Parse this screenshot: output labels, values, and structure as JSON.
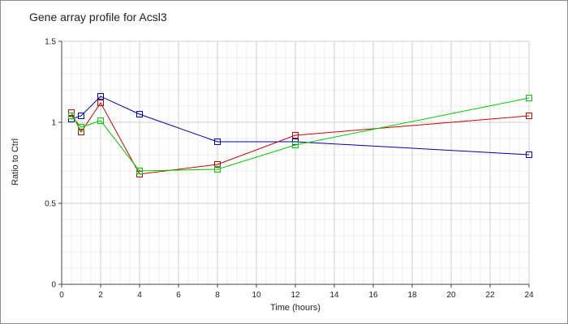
{
  "chart_data": {
    "type": "line",
    "title": "Gene array profile for Acsl3",
    "xlabel": "Time (hours)",
    "ylabel": "Ratio to Ctrl",
    "xlim": [
      0,
      24
    ],
    "ylim": [
      0,
      1.5
    ],
    "xticks": [
      0,
      2,
      4,
      6,
      8,
      10,
      12,
      14,
      16,
      18,
      20,
      22,
      24
    ],
    "yticks": [
      0,
      0.5,
      1,
      1.5
    ],
    "ytick_labels": [
      "0",
      "0.5",
      "1",
      "1.5"
    ],
    "grid": true,
    "marker": "square",
    "series": [
      {
        "color": "#0000b0",
        "x": [
          0.5,
          1,
          2,
          4,
          8,
          12,
          24
        ],
        "y": [
          1.02,
          1.04,
          1.16,
          1.05,
          0.88,
          0.88,
          0.8
        ]
      },
      {
        "color": "#d00000",
        "x": [
          0.5,
          1,
          2,
          4,
          8,
          12,
          24
        ],
        "y": [
          1.06,
          0.94,
          1.12,
          0.68,
          0.74,
          0.92,
          1.04
        ]
      },
      {
        "color": "#00cc00",
        "x": [
          0.5,
          1,
          2,
          4,
          8,
          12,
          24
        ],
        "y": [
          1.04,
          0.97,
          1.01,
          0.7,
          0.71,
          0.86,
          1.15
        ]
      }
    ]
  }
}
